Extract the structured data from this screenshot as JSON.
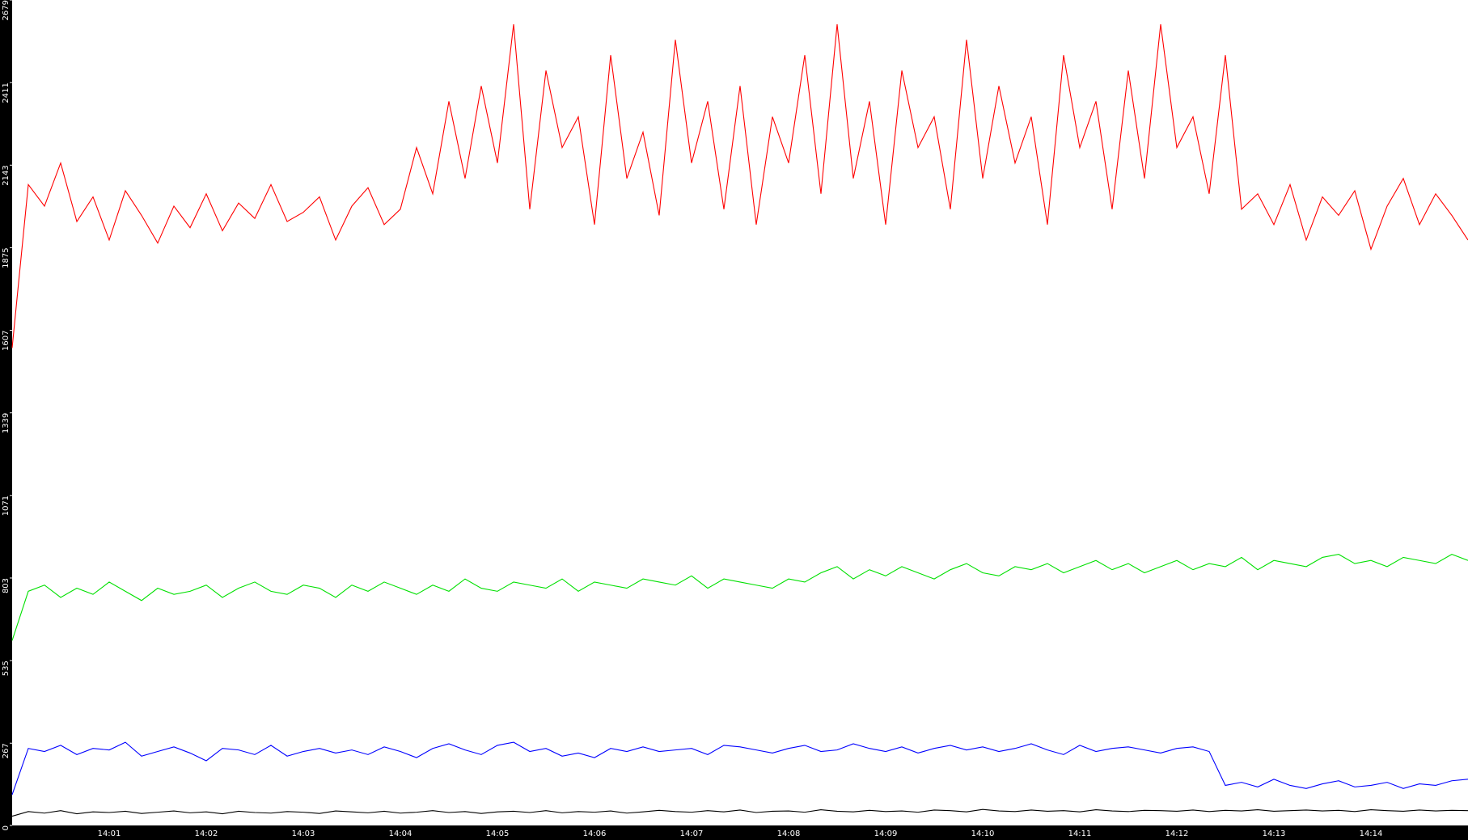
{
  "chart_data": {
    "type": "line",
    "categories": [
      null,
      null,
      null,
      null,
      null,
      null,
      "14:01",
      null,
      null,
      null,
      null,
      null,
      "14:02",
      null,
      null,
      null,
      null,
      null,
      "14:03",
      null,
      null,
      null,
      null,
      null,
      "14:04",
      null,
      null,
      null,
      null,
      null,
      "14:05",
      null,
      null,
      null,
      null,
      null,
      "14:06",
      null,
      null,
      null,
      null,
      null,
      "14:07",
      null,
      null,
      null,
      null,
      null,
      "14:08",
      null,
      null,
      null,
      null,
      null,
      "14:09",
      null,
      null,
      null,
      null,
      null,
      "14:10",
      null,
      null,
      null,
      null,
      null,
      "14:11",
      null,
      null,
      null,
      null,
      null,
      "14:12",
      null,
      null,
      null,
      null,
      null,
      "14:13",
      null,
      null,
      null,
      null,
      null,
      "14:14",
      null,
      null,
      null,
      null,
      null,
      null
    ],
    "ylim": [
      0,
      2679
    ],
    "yticks": [
      0,
      267,
      535,
      803,
      1071,
      1339,
      1607,
      1875,
      2143,
      2411,
      2679
    ],
    "series": [
      {
        "color": "#ff0000",
        "values": [
          1550,
          2080,
          2010,
          2150,
          1960,
          2040,
          1900,
          2060,
          1980,
          1890,
          2010,
          1940,
          2050,
          1930,
          2020,
          1970,
          2080,
          1960,
          1990,
          2040,
          1900,
          2010,
          2070,
          1950,
          2000,
          2200,
          2050,
          2350,
          2100,
          2400,
          2150,
          2600,
          2000,
          2450,
          2200,
          2300,
          1950,
          2500,
          2100,
          2250,
          1980,
          2550,
          2150,
          2350,
          2000,
          2400,
          1950,
          2300,
          2150,
          2500,
          2050,
          2600,
          2100,
          2350,
          1950,
          2450,
          2200,
          2300,
          2000,
          2550,
          2100,
          2400,
          2150,
          2300,
          1950,
          2500,
          2200,
          2350,
          2000,
          2450,
          2100,
          2600,
          2200,
          2300,
          2050,
          2500,
          2000,
          2050,
          1950,
          2080,
          1900,
          2040,
          1980,
          2060,
          1870,
          2010,
          2100,
          1950,
          2050,
          1980,
          1900
        ]
      },
      {
        "color": "#00e000",
        "values": [
          600,
          760,
          780,
          740,
          770,
          750,
          790,
          760,
          730,
          770,
          750,
          760,
          780,
          740,
          770,
          790,
          760,
          750,
          780,
          770,
          740,
          780,
          760,
          790,
          770,
          750,
          780,
          760,
          800,
          770,
          760,
          790,
          780,
          770,
          800,
          760,
          790,
          780,
          770,
          800,
          790,
          780,
          810,
          770,
          800,
          790,
          780,
          770,
          800,
          790,
          820,
          840,
          800,
          830,
          810,
          840,
          820,
          800,
          830,
          850,
          820,
          810,
          840,
          830,
          850,
          820,
          840,
          860,
          830,
          850,
          820,
          840,
          860,
          830,
          850,
          840,
          870,
          830,
          860,
          850,
          840,
          870,
          880,
          850,
          860,
          840,
          870,
          860,
          850,
          880,
          860
        ]
      },
      {
        "color": "#0000ff",
        "values": [
          100,
          250,
          240,
          260,
          230,
          250,
          245,
          270,
          225,
          240,
          255,
          235,
          210,
          250,
          245,
          230,
          260,
          225,
          240,
          250,
          235,
          245,
          230,
          255,
          240,
          220,
          250,
          265,
          245,
          230,
          260,
          270,
          240,
          250,
          225,
          235,
          220,
          250,
          240,
          255,
          240,
          245,
          250,
          230,
          260,
          255,
          245,
          235,
          250,
          260,
          240,
          245,
          265,
          250,
          240,
          255,
          235,
          250,
          260,
          245,
          255,
          240,
          250,
          265,
          245,
          230,
          260,
          240,
          250,
          255,
          245,
          235,
          250,
          255,
          240,
          130,
          140,
          125,
          150,
          130,
          120,
          135,
          145,
          125,
          130,
          140,
          120,
          135,
          130,
          145,
          150
        ]
      },
      {
        "color": "#000000",
        "values": [
          30,
          45,
          40,
          48,
          38,
          44,
          42,
          46,
          39,
          43,
          47,
          41,
          44,
          38,
          46,
          42,
          40,
          45,
          43,
          39,
          47,
          44,
          41,
          46,
          40,
          43,
          48,
          42,
          45,
          39,
          44,
          46,
          42,
          48,
          41,
          45,
          43,
          47,
          40,
          44,
          49,
          45,
          43,
          48,
          44,
          50,
          42,
          46,
          47,
          43,
          51,
          46,
          44,
          49,
          45,
          47,
          43,
          50,
          48,
          44,
          52,
          47,
          45,
          50,
          46,
          48,
          44,
          51,
          47,
          45,
          49,
          48,
          46,
          50,
          45,
          49,
          47,
          51,
          46,
          48,
          50,
          47,
          49,
          45,
          51,
          48,
          46,
          50,
          47,
          49,
          48
        ]
      }
    ]
  }
}
